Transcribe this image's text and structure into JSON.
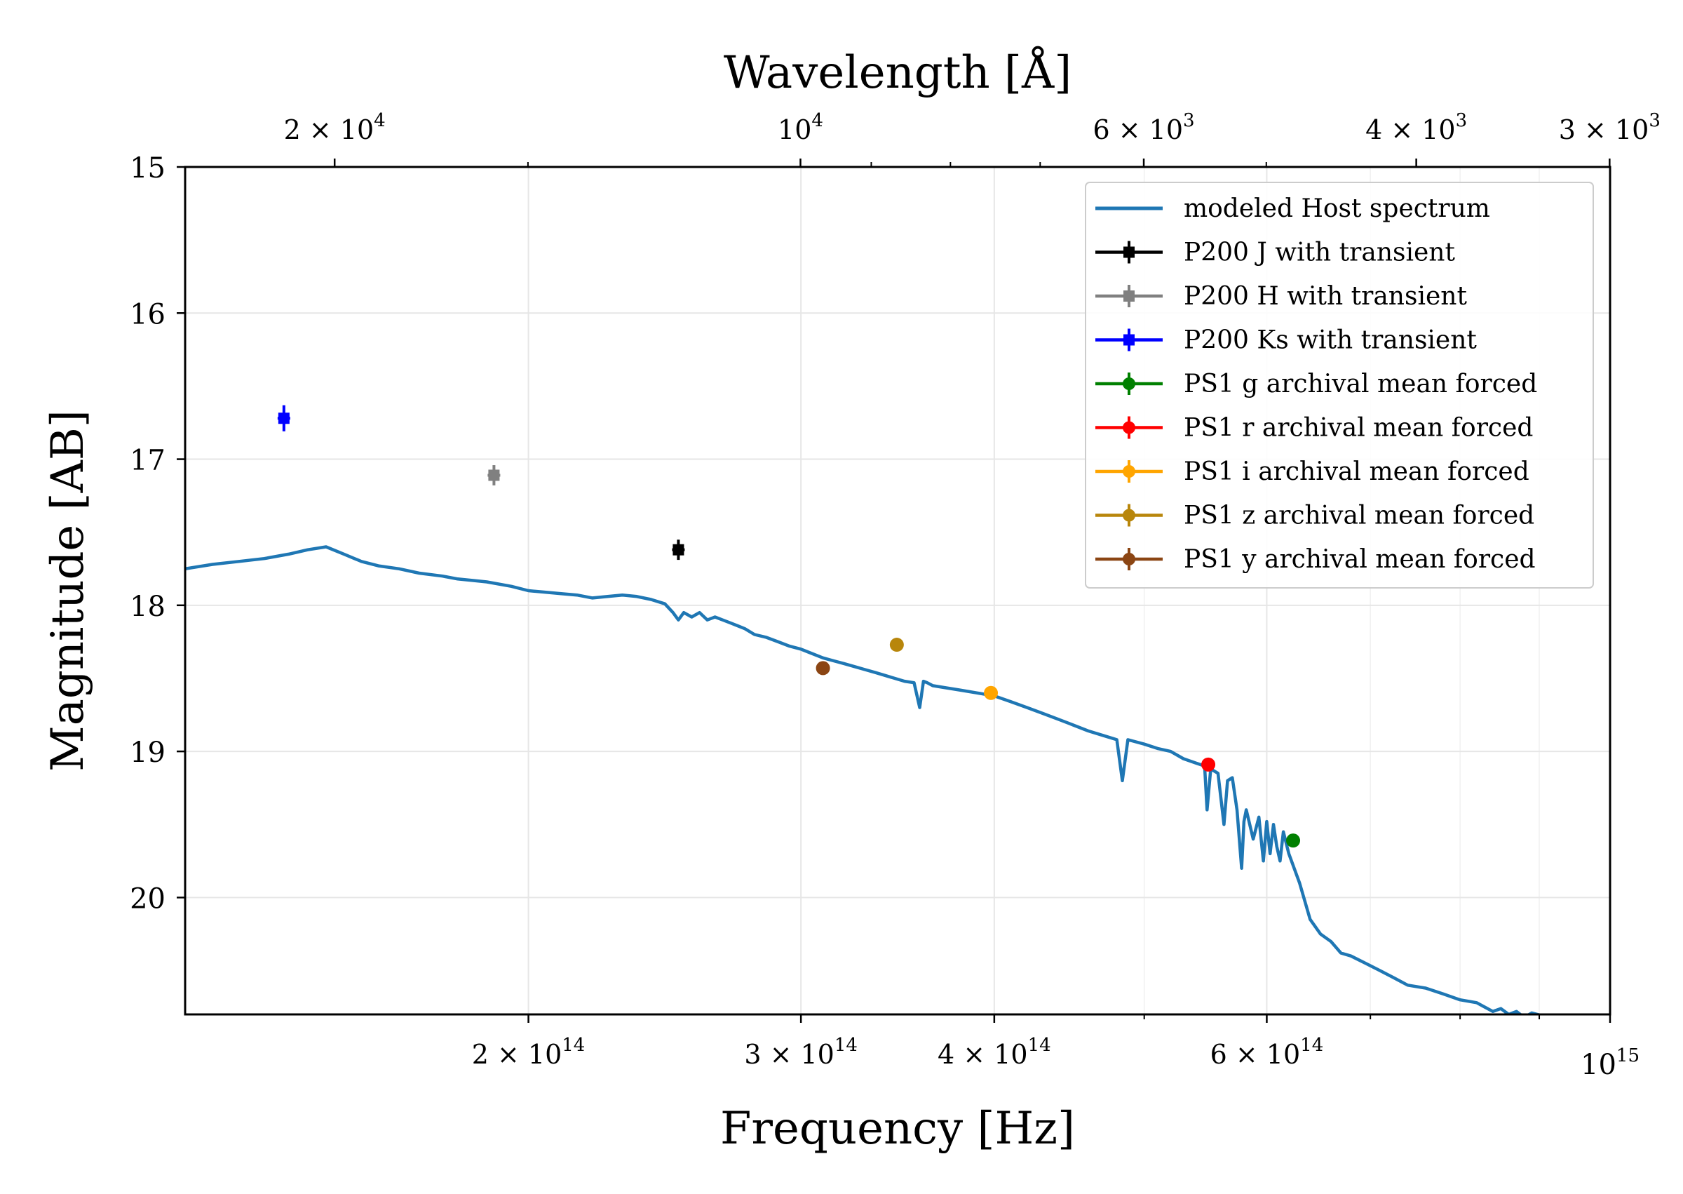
{
  "chart_data": {
    "type": "scatter",
    "xlabel": "Frequency [Hz]",
    "x2label": "Wavelength [Å]",
    "ylabel": "Magnitude [AB]",
    "xscale": "log",
    "xlim": [
      120000000000000,
      1000000000000000
    ],
    "ylim": [
      20.8,
      15
    ],
    "y_inverted": true,
    "grid": true,
    "legend_position": "upper right",
    "x_ticks": [
      {
        "value": 200000000000000,
        "label": "2 × 10^14"
      },
      {
        "value": 300000000000000,
        "label": "3 × 10^14"
      },
      {
        "value": 400000000000000,
        "label": "4 × 10^14"
      },
      {
        "value": 600000000000000,
        "label": "6 × 10^14"
      },
      {
        "value": 1000000000000000,
        "label": "10^15"
      }
    ],
    "wavelength_ticks": [
      {
        "value": 20000,
        "label": "2 × 10^4"
      },
      {
        "value": 10000,
        "label": "10^4"
      },
      {
        "value": 6000,
        "label": "6 × 10^3"
      },
      {
        "value": 4000,
        "label": "4 × 10^3"
      },
      {
        "value": 3000,
        "label": "3 × 10^3"
      }
    ],
    "y_ticks": [
      15,
      16,
      17,
      18,
      19,
      20
    ],
    "series": [
      {
        "name": "modeled Host spectrum",
        "kind": "line",
        "color": "#1f77b4",
        "x": [
          120000000000000.0,
          125000000000000.0,
          130000000000000.0,
          135000000000000.0,
          140000000000000.0,
          144000000000000.0,
          148000000000000.0,
          152000000000000.0,
          156000000000000.0,
          160000000000000.0,
          165000000000000.0,
          170000000000000.0,
          176000000000000.0,
          180000000000000.0,
          184000000000000.0,
          188000000000000.0,
          195000000000000.0,
          200000000000000.0,
          205000000000000.0,
          210000000000000.0,
          215000000000000.0,
          220000000000000.0,
          225000000000000.0,
          230000000000000.0,
          235000000000000.0,
          240000000000000.0,
          245000000000000.0,
          248000000000000.0,
          250000000000000.0,
          252000000000000.0,
          255000000000000.0,
          258000000000000.0,
          261000000000000.0,
          264000000000000.0,
          267000000000000.0,
          270000000000000.0,
          273000000000000.0,
          276000000000000.0,
          280000000000000.0,
          285000000000000.0,
          290000000000000.0,
          295000000000000.0,
          300000000000000.0,
          305000000000000.0,
          310000000000000.0,
          315000000000000.0,
          320000000000000.0,
          325000000000000.0,
          330000000000000.0,
          335000000000000.0,
          340000000000000.0,
          345000000000000.0,
          350000000000000.0,
          355000000000000.0,
          358000000000000.0,
          360000000000000.0,
          362000000000000.0,
          365000000000000.0,
          370000000000000.0,
          380000000000000.0,
          390000000000000.0,
          400000000000000.0,
          410000000000000.0,
          420000000000000.0,
          430000000000000.0,
          440000000000000.0,
          450000000000000.0,
          460000000000000.0,
          470000000000000.0,
          480000000000000.0,
          484000000000000.0,
          488000000000000.0,
          492000000000000.0,
          500000000000000.0,
          510000000000000.0,
          520000000000000.0,
          530000000000000.0,
          540000000000000.0,
          547000000000000.0,
          549000000000000.0,
          552000000000000.0,
          558000000000000.0,
          563000000000000.0,
          566000000000000.0,
          570000000000000.0,
          574000000000000.0,
          578000000000000.0,
          580000000000000.0,
          582000000000000.0,
          588000000000000.0,
          593000000000000.0,
          597000000000000.0,
          600000000000000.0,
          603000000000000.0,
          606000000000000.0,
          609000000000000.0,
          612000000000000.0,
          615000000000000.0,
          620000000000000.0,
          630000000000000.0,
          640000000000000.0,
          650000000000000.0,
          660000000000000.0,
          670000000000000.0,
          680000000000000.0,
          695000000000000.0,
          710000000000000.0,
          725000000000000.0,
          740000000000000.0,
          760000000000000.0,
          780000000000000.0,
          800000000000000.0,
          820000000000000.0,
          830000000000000.0,
          840000000000000.0,
          850000000000000.0,
          860000000000000.0,
          870000000000000.0,
          880000000000000.0,
          890000000000000.0,
          905000000000000.0
        ],
        "y": [
          17.75,
          17.72,
          17.7,
          17.68,
          17.65,
          17.62,
          17.6,
          17.65,
          17.7,
          17.73,
          17.75,
          17.78,
          17.8,
          17.82,
          17.83,
          17.84,
          17.87,
          17.9,
          17.91,
          17.92,
          17.93,
          17.95,
          17.94,
          17.93,
          17.94,
          17.96,
          17.99,
          18.05,
          18.1,
          18.05,
          18.08,
          18.05,
          18.1,
          18.08,
          18.1,
          18.12,
          18.14,
          18.16,
          18.2,
          18.22,
          18.25,
          18.28,
          18.3,
          18.33,
          18.36,
          18.38,
          18.4,
          18.42,
          18.44,
          18.46,
          18.48,
          18.5,
          18.52,
          18.53,
          18.7,
          18.52,
          18.53,
          18.55,
          18.56,
          18.58,
          18.6,
          18.62,
          18.66,
          18.7,
          18.74,
          18.78,
          18.82,
          18.86,
          18.89,
          18.92,
          19.2,
          18.92,
          18.93,
          18.95,
          18.98,
          19.0,
          19.05,
          19.08,
          19.1,
          19.4,
          19.12,
          19.15,
          19.5,
          19.2,
          19.18,
          19.4,
          19.8,
          19.48,
          19.4,
          19.6,
          19.45,
          19.75,
          19.48,
          19.7,
          19.5,
          19.65,
          19.75,
          19.55,
          19.7,
          19.9,
          20.15,
          20.25,
          20.3,
          20.38,
          20.4,
          20.45,
          20.5,
          20.55,
          20.6,
          20.62,
          20.66,
          20.7,
          20.72,
          20.75,
          20.78,
          20.76,
          20.8,
          20.78,
          20.82,
          20.79,
          20.81
        ]
      },
      {
        "name": "P200 J with transient",
        "kind": "point",
        "color": "#000000",
        "marker": "square",
        "x": [
          250000000000000.0
        ],
        "y": [
          17.62
        ],
        "yerr": 0.05
      },
      {
        "name": "P200 H with transient",
        "kind": "point",
        "color": "#808080",
        "marker": "square",
        "x": [
          190000000000000.0
        ],
        "y": [
          17.11
        ],
        "yerr": 0.05
      },
      {
        "name": "P200 Ks with transient",
        "kind": "point",
        "color": "#0000ff",
        "marker": "square",
        "x": [
          139000000000000.0
        ],
        "y": [
          16.72
        ],
        "yerr": 0.07
      },
      {
        "name": "PS1 g archival mean forced",
        "kind": "point",
        "color": "#008000",
        "marker": "circle",
        "x": [
          624000000000000.0
        ],
        "y": [
          19.61
        ],
        "yerr": 0.01
      },
      {
        "name": "PS1 r archival mean forced",
        "kind": "point",
        "color": "#ff0000",
        "marker": "circle",
        "x": [
          550000000000000.0
        ],
        "y": [
          19.09
        ],
        "yerr": 0.01
      },
      {
        "name": "PS1 i archival mean forced",
        "kind": "point",
        "color": "#ffa500",
        "marker": "circle",
        "x": [
          398000000000000.0
        ],
        "y": [
          18.6
        ],
        "yerr": 0.01
      },
      {
        "name": "PS1 z archival mean forced",
        "kind": "point",
        "color": "#b8860b",
        "marker": "circle",
        "x": [
          346000000000000.0
        ],
        "y": [
          18.27
        ],
        "yerr": 0.01
      },
      {
        "name": "PS1 y archival mean forced",
        "kind": "point",
        "color": "#8b4513",
        "marker": "circle",
        "x": [
          310000000000000.0
        ],
        "y": [
          18.43
        ],
        "yerr": 0.01
      }
    ]
  }
}
